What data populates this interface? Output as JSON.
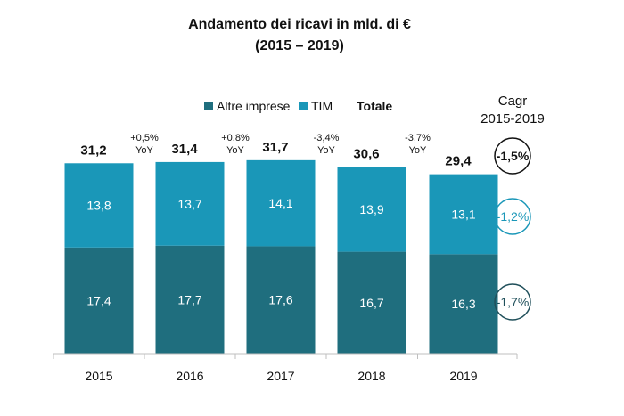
{
  "chart_data": {
    "type": "bar",
    "stacked": true,
    "title": "Andamento dei ricavi in mld. di €",
    "subtitle": "(2015 – 2019)",
    "categories": [
      "2015",
      "2016",
      "2017",
      "2018",
      "2019"
    ],
    "series": [
      {
        "name": "Altre imprese",
        "values": [
          17.4,
          17.7,
          17.6,
          16.7,
          16.3
        ],
        "labels": [
          "17,4",
          "17,7",
          "17,6",
          "16,7",
          "16,3"
        ],
        "color": "#1f6e7e"
      },
      {
        "name": "TIM",
        "values": [
          13.8,
          13.7,
          14.1,
          13.9,
          13.1
        ],
        "labels": [
          "13,8",
          "13,7",
          "14,1",
          "13,9",
          "13,1"
        ],
        "color": "#1a97b8"
      }
    ],
    "totals_label": "Totale",
    "totals": [
      31.2,
      31.4,
      31.7,
      30.6,
      29.4
    ],
    "totals_labels": [
      "31,2",
      "31,4",
      "31,7",
      "30,6",
      "29,4"
    ],
    "yoy": [
      {
        "value": "+0,5%",
        "unit": "YoY"
      },
      {
        "value": "+0.8%",
        "unit": "YoY"
      },
      {
        "value": "-3,4%",
        "unit": "YoY"
      },
      {
        "value": "-3,7%",
        "unit": "YoY"
      }
    ],
    "cagr": {
      "title_line1": "Cagr",
      "title_line2": "2015-2019",
      "total": {
        "value": "-1,5%",
        "color": "#111111"
      },
      "tim": {
        "value": "-1,2%",
        "color": "#1a97b8"
      },
      "altre": {
        "value": "-1,7%",
        "color": "#1f4f5a"
      }
    },
    "legend_position": "top",
    "grid": false
  }
}
